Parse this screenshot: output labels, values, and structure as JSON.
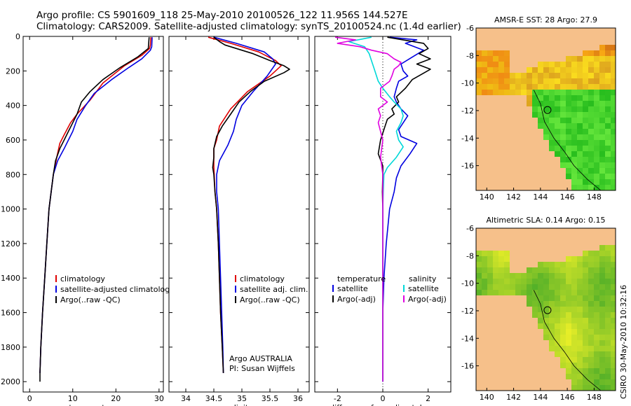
{
  "header": {
    "line1": "Argo profile: CS 5901609_118 25-May-2010 20100526_122 11.956S 144.527E",
    "line2": "Climatology: CARS2009. Satellite-adjusted climatology: synTS_20100524.nc (1.4d earlier)"
  },
  "chart_data": [
    {
      "type": "line",
      "id": "temperature",
      "xlabel": "temperature",
      "ylabel": "",
      "xlim": [
        -1.5,
        31
      ],
      "ylim": [
        0,
        2060
      ],
      "y_inverted": true,
      "xticks": [
        0,
        10,
        20,
        30
      ],
      "yticks": [
        0,
        200,
        400,
        600,
        800,
        1000,
        1200,
        1400,
        1600,
        1800,
        2000
      ],
      "legend": [
        "climatology",
        "satellite-adjusted climatology",
        "Argo(..raw -QC)"
      ],
      "series": [
        {
          "name": "climatology",
          "color": "#e00000",
          "points": [
            [
              28.1,
              5
            ],
            [
              28,
              50
            ],
            [
              27.8,
              70
            ],
            [
              26,
              110
            ],
            [
              22,
              170
            ],
            [
              17,
              270
            ],
            [
              14,
              370
            ],
            [
              11,
              450
            ],
            [
              9.5,
              500
            ],
            [
              8,
              570
            ],
            [
              7,
              620
            ],
            [
              6.3,
              700
            ],
            [
              5.5,
              800
            ],
            [
              5,
              900
            ],
            [
              4.5,
              1000
            ],
            [
              4,
              1200
            ],
            [
              3.5,
              1400
            ],
            [
              3,
              1600
            ],
            [
              2.6,
              1800
            ],
            [
              2.4,
              1950
            ]
          ]
        },
        {
          "name": "satellite-adjusted climatology",
          "color": "#0000e0",
          "points": [
            [
              28.4,
              5
            ],
            [
              28.3,
              60
            ],
            [
              28,
              80
            ],
            [
              26,
              130
            ],
            [
              23,
              180
            ],
            [
              19,
              250
            ],
            [
              15,
              330
            ],
            [
              13,
              400
            ],
            [
              11,
              480
            ],
            [
              10,
              550
            ],
            [
              9,
              600
            ],
            [
              8,
              650
            ],
            [
              6.5,
              720
            ],
            [
              5.5,
              800
            ],
            [
              5,
              900
            ],
            [
              4.5,
              1000
            ],
            [
              4,
              1200
            ],
            [
              3.5,
              1400
            ],
            [
              3,
              1600
            ],
            [
              2.6,
              1800
            ],
            [
              2.4,
              1950
            ]
          ]
        },
        {
          "name": "Argo(..raw -QC)",
          "color": "#000000",
          "points": [
            [
              27.7,
              5
            ],
            [
              27.5,
              70
            ],
            [
              25,
              120
            ],
            [
              21,
              180
            ],
            [
              17,
              250
            ],
            [
              14,
              320
            ],
            [
              12,
              380
            ],
            [
              11,
              450
            ],
            [
              10,
              500
            ],
            [
              9,
              550
            ],
            [
              8,
              600
            ],
            [
              7,
              650
            ],
            [
              6,
              720
            ],
            [
              5.5,
              800
            ],
            [
              5,
              900
            ],
            [
              4.5,
              1000
            ],
            [
              4,
              1200
            ],
            [
              3.5,
              1400
            ],
            [
              3,
              1600
            ],
            [
              2.6,
              1800
            ],
            [
              2.4,
              1950
            ],
            [
              2.4,
              2000
            ]
          ]
        }
      ]
    },
    {
      "type": "line",
      "id": "salinity",
      "xlabel": "salinity",
      "ylabel": "",
      "xlim": [
        33.7,
        36.2
      ],
      "ylim": [
        0,
        2060
      ],
      "y_inverted": true,
      "xticks": [
        34,
        34.5,
        35,
        35.5,
        36
      ],
      "legend": [
        "climatology",
        "satellite adj. clim.",
        "Argo(..raw -QC)"
      ],
      "annotations": [
        "Argo AUSTRALIA",
        "PI: Susan Wijffels"
      ],
      "series": [
        {
          "name": "climatology",
          "color": "#e00000",
          "points": [
            [
              34.4,
              5
            ],
            [
              34.8,
              40
            ],
            [
              35.3,
              90
            ],
            [
              35.6,
              140
            ],
            [
              35.7,
              170
            ],
            [
              35.5,
              230
            ],
            [
              35.1,
              320
            ],
            [
              34.8,
              420
            ],
            [
              34.6,
              520
            ],
            [
              34.55,
              600
            ],
            [
              34.5,
              650
            ],
            [
              34.5,
              700
            ],
            [
              34.5,
              750
            ],
            [
              34.52,
              900
            ],
            [
              34.55,
              1000
            ],
            [
              34.58,
              1200
            ],
            [
              34.6,
              1400
            ],
            [
              34.62,
              1600
            ],
            [
              34.65,
              1800
            ],
            [
              34.67,
              1950
            ]
          ]
        },
        {
          "name": "satellite adj. clim.",
          "color": "#0000e0",
          "points": [
            [
              34.5,
              5
            ],
            [
              34.9,
              40
            ],
            [
              35.4,
              90
            ],
            [
              35.55,
              130
            ],
            [
              35.6,
              160
            ],
            [
              35.45,
              230
            ],
            [
              35.2,
              320
            ],
            [
              35,
              400
            ],
            [
              34.9,
              480
            ],
            [
              34.85,
              550
            ],
            [
              34.75,
              630
            ],
            [
              34.6,
              720
            ],
            [
              34.55,
              800
            ],
            [
              34.55,
              900
            ],
            [
              34.58,
              1000
            ],
            [
              34.6,
              1200
            ],
            [
              34.62,
              1400
            ],
            [
              34.64,
              1600
            ],
            [
              34.66,
              1800
            ],
            [
              34.67,
              1950
            ]
          ]
        },
        {
          "name": "Argo(..raw -QC)",
          "color": "#000000",
          "points": [
            [
              34.5,
              5
            ],
            [
              34.6,
              30
            ],
            [
              34.7,
              50
            ],
            [
              35.2,
              100
            ],
            [
              35.5,
              140
            ],
            [
              35.75,
              170
            ],
            [
              35.85,
              190
            ],
            [
              35.75,
              210
            ],
            [
              35.4,
              260
            ],
            [
              35.15,
              320
            ],
            [
              34.95,
              380
            ],
            [
              34.8,
              450
            ],
            [
              34.65,
              520
            ],
            [
              34.55,
              580
            ],
            [
              34.5,
              650
            ],
            [
              34.5,
              700
            ],
            [
              34.48,
              760
            ],
            [
              34.5,
              800
            ],
            [
              34.52,
              900
            ],
            [
              34.55,
              1000
            ],
            [
              34.58,
              1200
            ],
            [
              34.6,
              1400
            ],
            [
              34.62,
              1600
            ],
            [
              34.65,
              1800
            ],
            [
              34.67,
              1950
            ]
          ]
        }
      ]
    },
    {
      "type": "line",
      "id": "difference",
      "xlabel": "difference from climatology",
      "ylabel": "",
      "xlim": [
        -3,
        3
      ],
      "ylim": [
        0,
        2060
      ],
      "y_inverted": true,
      "xticks": [
        -2,
        0,
        2
      ],
      "legend_left_title": "temperature",
      "legend_left": [
        "satellite",
        "Argo(-adj)"
      ],
      "legend_right_title": "salinity",
      "legend_right": [
        "satellite",
        "Argo(-adj)"
      ],
      "series": [
        {
          "name": "temperature satellite",
          "color": "#0000e0",
          "points": [
            [
              0.3,
              5
            ],
            [
              1.5,
              20
            ],
            [
              1.0,
              40
            ],
            [
              1.8,
              80
            ],
            [
              1.3,
              120
            ],
            [
              0.8,
              160
            ],
            [
              0.9,
              200
            ],
            [
              1.1,
              230
            ],
            [
              0.7,
              260
            ],
            [
              0.6,
              300
            ],
            [
              0.5,
              350
            ],
            [
              0.6,
              380
            ],
            [
              0.8,
              420
            ],
            [
              1.1,
              460
            ],
            [
              0.9,
              500
            ],
            [
              0.7,
              540
            ],
            [
              0.8,
              580
            ],
            [
              1.5,
              620
            ],
            [
              1.2,
              680
            ],
            [
              0.8,
              750
            ],
            [
              0.6,
              820
            ],
            [
              0.5,
              900
            ],
            [
              0.3,
              1000
            ],
            [
              0.15,
              1200
            ],
            [
              0.05,
              1400
            ],
            [
              0,
              1600
            ],
            [
              0,
              2000
            ]
          ]
        },
        {
          "name": "temperature Argo(-adj)",
          "color": "#000000",
          "points": [
            [
              0.2,
              5
            ],
            [
              1.8,
              40
            ],
            [
              2.0,
              70
            ],
            [
              1.6,
              100
            ],
            [
              2.1,
              130
            ],
            [
              1.5,
              160
            ],
            [
              2.1,
              190
            ],
            [
              1.7,
              220
            ],
            [
              1.3,
              250
            ],
            [
              1.0,
              300
            ],
            [
              0.6,
              350
            ],
            [
              0.7,
              380
            ],
            [
              0.4,
              420
            ],
            [
              0.5,
              450
            ],
            [
              0.2,
              480
            ],
            [
              0.1,
              520
            ],
            [
              0,
              560
            ],
            [
              -0.1,
              600
            ],
            [
              -0.2,
              680
            ],
            [
              0,
              750
            ],
            [
              0,
              800
            ],
            [
              -0.02,
              900
            ],
            [
              0,
              1000
            ],
            [
              0,
              1200
            ],
            [
              0,
              1400
            ],
            [
              0,
              1600
            ],
            [
              0,
              1800
            ],
            [
              0,
              2000
            ]
          ]
        },
        {
          "name": "salinity satellite",
          "color": "#00d8d8",
          "points": [
            [
              -0.5,
              5
            ],
            [
              -1.5,
              30
            ],
            [
              -0.8,
              60
            ],
            [
              -0.6,
              100
            ],
            [
              -0.5,
              140
            ],
            [
              -0.4,
              180
            ],
            [
              -0.3,
              220
            ],
            [
              -0.2,
              260
            ],
            [
              0,
              300
            ],
            [
              0.3,
              350
            ],
            [
              0.5,
              380
            ],
            [
              0.8,
              420
            ],
            [
              0.9,
              460
            ],
            [
              0.8,
              500
            ],
            [
              0.6,
              550
            ],
            [
              0.7,
              600
            ],
            [
              0.9,
              640
            ],
            [
              0.6,
              700
            ],
            [
              0.2,
              760
            ],
            [
              0.05,
              800
            ],
            [
              0.02,
              900
            ],
            [
              0,
              1000
            ],
            [
              0,
              1200
            ],
            [
              0,
              1400
            ],
            [
              0,
              1600
            ],
            [
              0,
              1800
            ],
            [
              0,
              2000
            ]
          ]
        },
        {
          "name": "salinity Argo(-adj)",
          "color": "#e000e0",
          "points": [
            [
              -2.1,
              5
            ],
            [
              -1.2,
              20
            ],
            [
              -2.0,
              40
            ],
            [
              -1.0,
              60
            ],
            [
              -0.5,
              80
            ],
            [
              0.2,
              100
            ],
            [
              0.5,
              130
            ],
            [
              0.8,
              150
            ],
            [
              0.7,
              170
            ],
            [
              0.5,
              190
            ],
            [
              0.4,
              230
            ],
            [
              0.3,
              260
            ],
            [
              -0.1,
              300
            ],
            [
              -0.1,
              350
            ],
            [
              0.2,
              380
            ],
            [
              -0.2,
              420
            ],
            [
              -0.1,
              460
            ],
            [
              -0.2,
              500
            ],
            [
              0,
              600
            ],
            [
              -0.1,
              700
            ],
            [
              0,
              800
            ],
            [
              0,
              900
            ],
            [
              0,
              1000
            ],
            [
              0,
              1200
            ],
            [
              0,
              1400
            ],
            [
              0,
              1600
            ],
            [
              0,
              1800
            ],
            [
              0,
              2000
            ]
          ]
        }
      ]
    },
    {
      "type": "heatmap",
      "id": "sst-map",
      "title": "AMSR-E SST: 28 Argo: 27.9",
      "xlim": [
        139.2,
        149.6
      ],
      "ylim": [
        -17.8,
        -6
      ],
      "xticks": [
        140,
        142,
        144,
        146,
        148
      ],
      "yticks": [
        -6,
        -8,
        -10,
        -12,
        -14,
        -16
      ],
      "marker": [
        144.527,
        -11.956
      ]
    },
    {
      "type": "heatmap",
      "id": "sla-map",
      "title": "Altimetric SLA: 0.14 Argo: 0.15",
      "xlim": [
        139.2,
        149.6
      ],
      "ylim": [
        -17.8,
        -6
      ],
      "xticks": [
        140,
        142,
        144,
        146,
        148
      ],
      "yticks": [
        -6,
        -8,
        -10,
        -12,
        -14,
        -16
      ],
      "marker": [
        144.527,
        -11.956
      ]
    }
  ],
  "footer": {
    "credit": "CSIRO 30-May-2010 10:32:16"
  }
}
